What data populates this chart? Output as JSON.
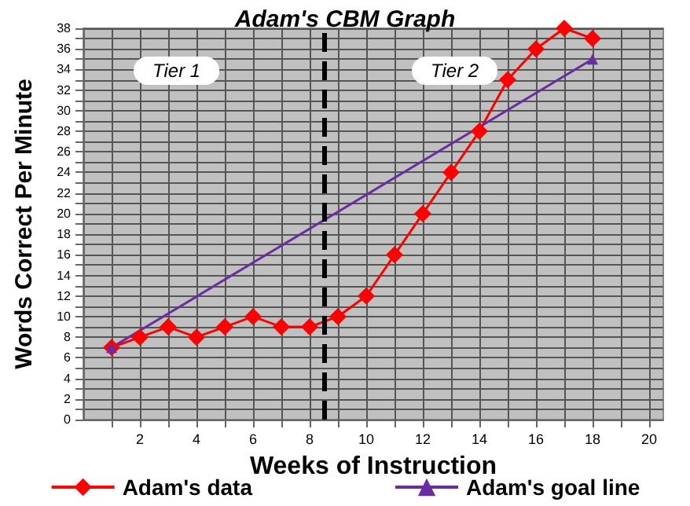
{
  "chart_data": {
    "type": "line",
    "title": "Adam's CBM Graph",
    "xlabel": "Weeks of Instruction",
    "ylabel": "Words Correct Per Minute",
    "series": [
      {
        "name": "Adam's data",
        "color": "#ff0000",
        "marker": "diamond",
        "x": [
          1,
          2,
          3,
          4,
          5,
          6,
          7,
          8,
          9,
          10,
          11,
          12,
          13,
          14,
          15,
          16,
          17,
          18
        ],
        "values": [
          7,
          8,
          9,
          8,
          9,
          10,
          9,
          9,
          10,
          12,
          16,
          20,
          24,
          28,
          33,
          36,
          38,
          37
        ]
      },
      {
        "name": "Adam's goal line",
        "color": "#6a2ca0",
        "marker": "triangle",
        "x": [
          1,
          18
        ],
        "values": [
          7,
          35
        ]
      }
    ],
    "xlim": [
      0,
      20.5
    ],
    "xticks": [
      {
        "value": 1,
        "label": null
      },
      2,
      {
        "value": 3,
        "label": null
      },
      4,
      {
        "value": 5,
        "label": null
      },
      6,
      {
        "value": 7,
        "label": null
      },
      8,
      {
        "value": 9,
        "label": null
      },
      10,
      {
        "value": 11,
        "label": null
      },
      12,
      {
        "value": 13,
        "label": null
      },
      14,
      {
        "value": 15,
        "label": null
      },
      16,
      {
        "value": 17,
        "label": null
      },
      18,
      {
        "value": 19,
        "label": null
      },
      20
    ],
    "ylim": [
      0,
      38
    ],
    "yticks": [
      0,
      {
        "value": 1,
        "label": null
      },
      2,
      {
        "value": 3,
        "label": null
      },
      4,
      {
        "value": 5,
        "label": null
      },
      6,
      {
        "value": 7,
        "label": null
      },
      8,
      {
        "value": 9,
        "label": null
      },
      10,
      {
        "value": 11,
        "label": null
      },
      12,
      {
        "value": 13,
        "label": null
      },
      14,
      {
        "value": 15,
        "label": null
      },
      16,
      {
        "value": 17,
        "label": null
      },
      18,
      {
        "value": 19,
        "label": null
      },
      20,
      {
        "value": 21,
        "label": null
      },
      22,
      {
        "value": 23,
        "label": null
      },
      24,
      {
        "value": 25,
        "label": null
      },
      26,
      {
        "value": 27,
        "label": null
      },
      28,
      {
        "value": 29,
        "label": null
      },
      30,
      {
        "value": 31,
        "label": null
      },
      32,
      {
        "value": 33,
        "label": null
      },
      34,
      {
        "value": 35,
        "label": null
      },
      36,
      {
        "value": 37,
        "label": null
      },
      38
    ],
    "grid": true,
    "legend": "bottom",
    "ref_lines": [
      {
        "axis": "x",
        "value": 8.5,
        "color": "#000000",
        "line_style": "dashed"
      }
    ],
    "annotations": [
      "Tier 1",
      "Tier 2"
    ]
  }
}
